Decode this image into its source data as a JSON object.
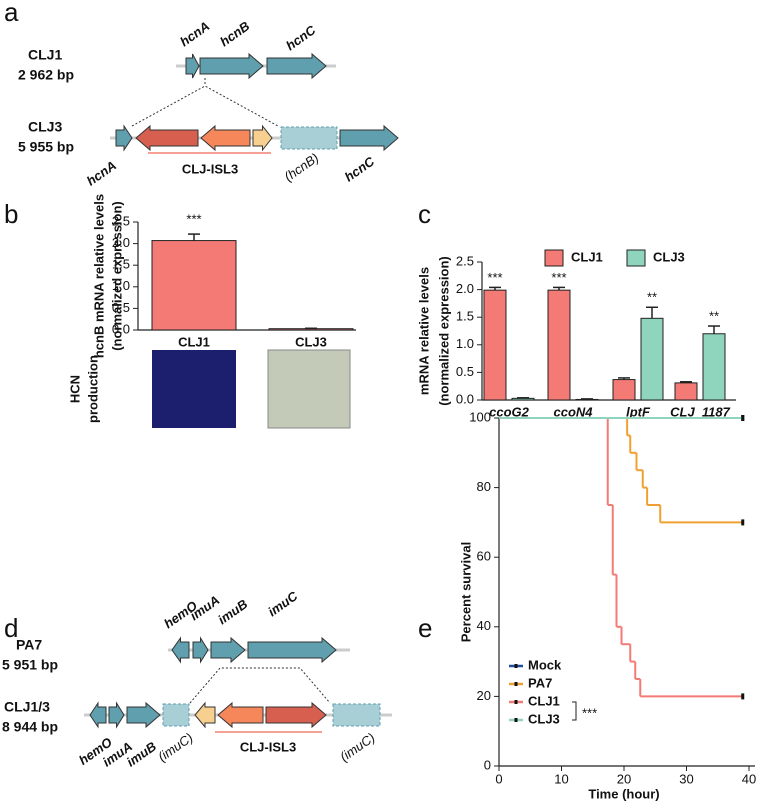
{
  "panel_labels": [
    "a",
    "b",
    "c",
    "d",
    "e"
  ],
  "diagram_a": {
    "strains": [
      {
        "name": "CLJ1",
        "size": "2 962 bp"
      },
      {
        "name": "CLJ3",
        "size": "5 955 bp"
      }
    ],
    "top_genes": [
      "hcnA",
      "hcnB",
      "hcnC"
    ],
    "bottom_genes": [
      "hcnA",
      "CLJ-ISL3",
      "(hcnB)",
      "hcnC"
    ]
  },
  "diagram_d": {
    "strains": [
      {
        "name": "PA7",
        "size": "5 951 bp"
      },
      {
        "name": "CLJ1/3",
        "size": "8 944 bp"
      }
    ],
    "top_genes": [
      "hemO",
      "imuA",
      "imuB",
      "imuC"
    ],
    "bottom_genes": [
      "hemO",
      "imuA",
      "imuB",
      "(imuC)",
      "CLJ-ISL3",
      "(imuC)"
    ]
  },
  "chart_data": [
    {
      "type": "bar",
      "y_label": [
        "hcnB mRNA relative levels",
        "(normalized expression)"
      ],
      "categories": [
        "CLJ1",
        "CLJ3"
      ],
      "values": [
        2.07,
        0.03
      ],
      "errors": [
        0.15,
        0.01
      ],
      "color": "#f47a76",
      "ylim": [
        0,
        2.5
      ],
      "yticks": [
        {
          "value": 0,
          "label": "0.0"
        },
        0.5,
        {
          "value": 1,
          "label": "1.0"
        },
        1.5,
        {
          "value": 2,
          "label": "2.0"
        },
        2.5
      ],
      "annotations": [
        {
          "text": "***",
          "category": "CLJ1"
        }
      ],
      "image_label": [
        "HCN",
        "production"
      ]
    },
    {
      "type": "grouped_bar",
      "y_label": [
        "mRNA relative levels",
        "(normalized expression)"
      ],
      "categories": [
        "ccoG2",
        "ccoN4",
        "lptF",
        "CLJ_1187"
      ],
      "series": [
        {
          "name": "CLJ1",
          "color": "#f47a76",
          "values": [
            1.99,
            1.99,
            0.37,
            0.31
          ],
          "errors": [
            0.05,
            0.05,
            0.03,
            0.02
          ]
        },
        {
          "name": "CLJ3",
          "color": "#8fd5bd",
          "values": [
            0.03,
            0.01,
            1.48,
            1.2
          ],
          "errors": [
            0.01,
            0.01,
            0.2,
            0.14
          ]
        }
      ],
      "ylim": [
        0,
        2.5
      ],
      "yticks": [
        {
          "value": 0,
          "label": "0.0"
        },
        0.5,
        {
          "value": 1,
          "label": "1.0"
        },
        1.5,
        {
          "value": 2,
          "label": "2.0"
        },
        2.5
      ],
      "annotations": [
        {
          "text": "***",
          "category": "ccoG2",
          "series": "CLJ1"
        },
        {
          "text": "***",
          "category": "ccoN4",
          "series": "CLJ1"
        },
        {
          "text": "**",
          "category": "lptF",
          "series": "CLJ3"
        },
        {
          "text": "**",
          "category": "CLJ_1187",
          "series": "CLJ3"
        }
      ]
    },
    {
      "type": "survival",
      "x_label": "Time (hour)",
      "y_label": "Percent survival",
      "xlim": [
        0,
        40
      ],
      "xticks": [
        0,
        10,
        20,
        30,
        40
      ],
      "ylim": [
        0,
        100
      ],
      "yticks": [
        0,
        20,
        40,
        60,
        80,
        100
      ],
      "series": [
        {
          "name": "Mock",
          "color": "#1f4e9c",
          "x": [
            0,
            39
          ],
          "values": [
            100,
            100
          ]
        },
        {
          "name": "PA7",
          "color": "#f0a030",
          "x": [
            0,
            20.5,
            21,
            22,
            23,
            23.7,
            25.8,
            39
          ],
          "values": [
            100,
            95,
            90,
            85,
            80,
            75,
            70,
            70
          ]
        },
        {
          "name": "CLJ1",
          "color": "#f47a76",
          "x": [
            0,
            17.4,
            18.2,
            18.8,
            19.6,
            21,
            21.8,
            22.6,
            39
          ],
          "values": [
            100,
            75,
            55,
            40,
            35,
            30,
            25,
            20,
            20
          ]
        },
        {
          "name": "CLJ3",
          "color": "#8fd5bd",
          "x": [
            0,
            39
          ],
          "values": [
            100,
            100
          ]
        }
      ],
      "annotations": [
        {
          "text": "***",
          "series": [
            "CLJ1",
            "CLJ3"
          ]
        }
      ]
    }
  ]
}
